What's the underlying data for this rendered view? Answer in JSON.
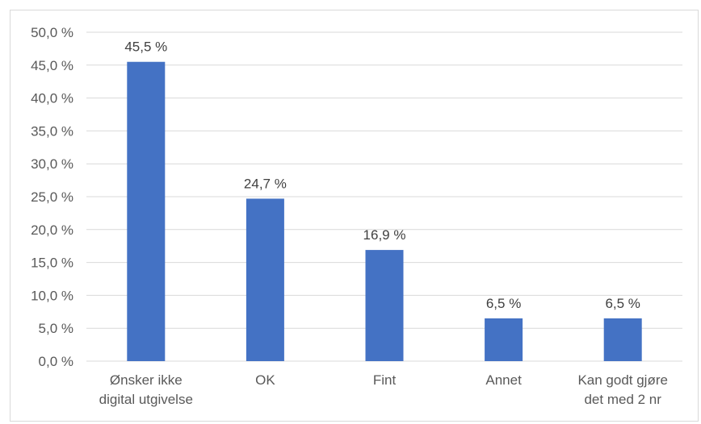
{
  "chart_data": {
    "type": "bar",
    "categories": [
      [
        "Ønsker ikke",
        "digital utgivelse"
      ],
      [
        "OK"
      ],
      [
        "Fint"
      ],
      [
        "Annet"
      ],
      [
        "Kan godt gjøre",
        "det med 2 nr"
      ]
    ],
    "values": [
      45.5,
      24.7,
      16.9,
      6.5,
      6.5
    ],
    "data_labels": [
      "45,5 %",
      "24,7 %",
      "16,9 %",
      "6,5 %",
      "6,5 %"
    ],
    "y_ticks": [
      "0,0 %",
      "5,0 %",
      "10,0 %",
      "15,0 %",
      "20,0 %",
      "25,0 %",
      "30,0 %",
      "35,0 %",
      "40,0 %",
      "45,0 %",
      "50,0 %"
    ],
    "ylim": [
      0,
      50
    ],
    "y_step": 5,
    "grid": true,
    "legend": "none",
    "bar_color": "#4472c4",
    "grid_color": "#d9d9d9"
  }
}
